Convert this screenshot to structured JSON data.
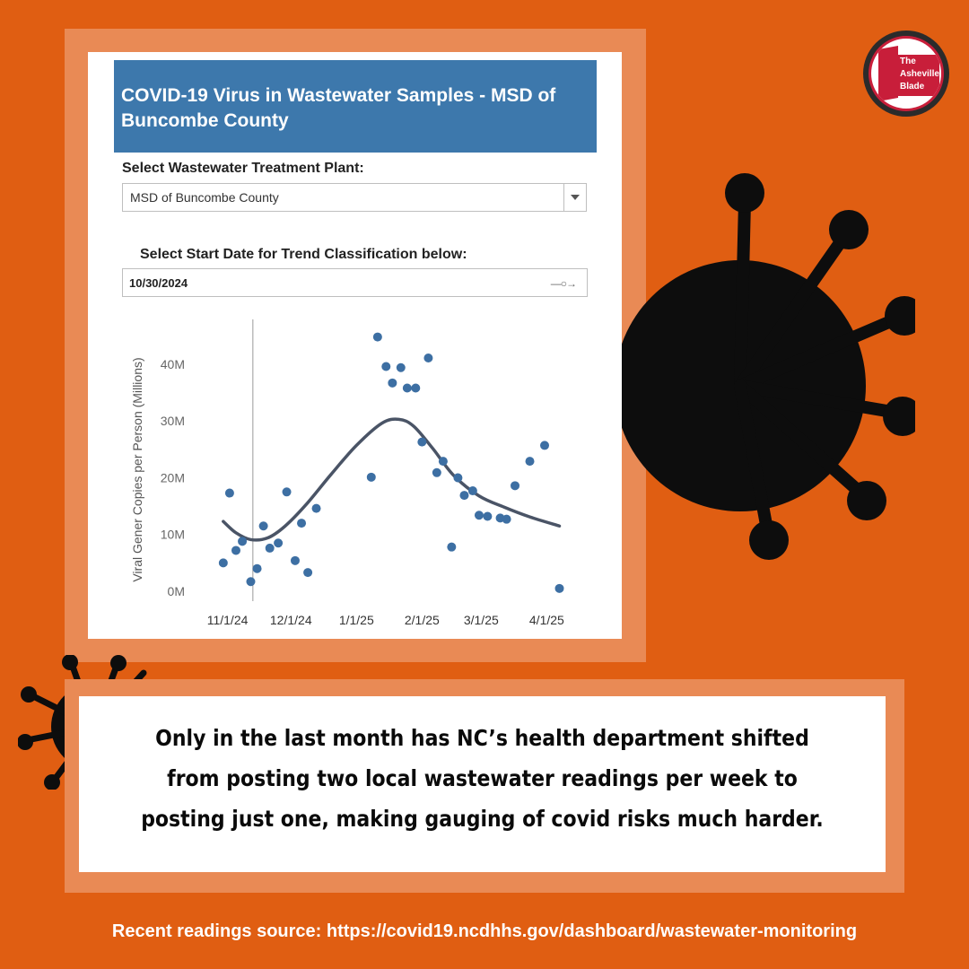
{
  "card": {
    "title": "COVID-19 Virus in Wastewater Samples - MSD of Buncombe County",
    "plant_label": "Select Wastewater Treatment Plant:",
    "plant_value": "MSD of Buncombe County",
    "date_label": "Select Start Date for Trend Classification below:",
    "date_value": "10/30/2024",
    "slider_icon": "—○→"
  },
  "logo": {
    "line1": "The",
    "line2": "Asheville",
    "line3": "Blade"
  },
  "caption": "Only in the last month has NC’s health department shifted from posting two local wastewater readings per week to posting just one, making gauging of covid risks much harder.",
  "source": "Recent readings source: https://covid19.ncdhhs.gov/dashboard/wastewater-monitoring",
  "colors": {
    "background": "#e05e12",
    "frame": "#e98a55",
    "header": "#3d78ac",
    "points": "#3d6fa3",
    "trend": "#4a5466",
    "virus": "#0d0d0d"
  },
  "icons": {
    "big": "virus-icon",
    "small": "virus-icon",
    "logo": "blade-logo-icon"
  },
  "chart_data": {
    "type": "scatter",
    "title": "",
    "xlabel": "",
    "ylabel": "Viral Gener Copies per Person (Millions)",
    "xlim": [
      "2024-10-22",
      "2025-04-14"
    ],
    "ylim": [
      0,
      46
    ],
    "ytick_values": [
      0,
      10,
      20,
      30,
      40
    ],
    "ytick_labels": [
      "0M",
      "10M",
      "20M",
      "30M",
      "40M"
    ],
    "xtick_values": [
      "2024-11-01",
      "2024-12-01",
      "2025-01-01",
      "2025-02-01",
      "2025-03-01",
      "2025-04-01"
    ],
    "xtick_labels": [
      "11/1/24",
      "12/1/24",
      "1/1/25",
      "2/1/25",
      "3/1/25",
      "4/1/25"
    ],
    "reference_line": {
      "x": "2024-11-13"
    },
    "grid": false,
    "legend": "none",
    "series": [
      {
        "type": "scatter",
        "points": [
          [
            "2024-10-30",
            5.0
          ],
          [
            "2024-11-02",
            17.3
          ],
          [
            "2024-11-05",
            7.2
          ],
          [
            "2024-11-08",
            8.8
          ],
          [
            "2024-11-12",
            1.7
          ],
          [
            "2024-11-15",
            4.0
          ],
          [
            "2024-11-18",
            11.5
          ],
          [
            "2024-11-21",
            7.6
          ],
          [
            "2024-11-25",
            8.5
          ],
          [
            "2024-11-29",
            17.5
          ],
          [
            "2024-12-03",
            5.4
          ],
          [
            "2024-12-06",
            12.0
          ],
          [
            "2024-12-09",
            3.3
          ],
          [
            "2024-12-13",
            14.6
          ],
          [
            "2025-01-08",
            20.1
          ],
          [
            "2025-01-11",
            44.8
          ],
          [
            "2025-01-15",
            39.6
          ],
          [
            "2025-01-18",
            36.7
          ],
          [
            "2025-01-22",
            39.4
          ],
          [
            "2025-01-25",
            35.8
          ],
          [
            "2025-01-29",
            35.8
          ],
          [
            "2025-02-01",
            26.3
          ],
          [
            "2025-02-04",
            41.1
          ],
          [
            "2025-02-08",
            20.9
          ],
          [
            "2025-02-11",
            22.9
          ],
          [
            "2025-02-15",
            7.8
          ],
          [
            "2025-02-18",
            20.0
          ],
          [
            "2025-02-21",
            16.9
          ],
          [
            "2025-02-25",
            17.7
          ],
          [
            "2025-02-28",
            13.4
          ],
          [
            "2025-03-04",
            13.2
          ],
          [
            "2025-03-10",
            12.9
          ],
          [
            "2025-03-13",
            12.7
          ],
          [
            "2025-03-17",
            18.6
          ],
          [
            "2025-03-24",
            22.9
          ],
          [
            "2025-03-31",
            25.7
          ],
          [
            "2025-04-07",
            0.5
          ]
        ]
      },
      {
        "type": "line",
        "points": [
          [
            "2024-10-30",
            12.3
          ],
          [
            "2024-11-05",
            10.3
          ],
          [
            "2024-11-12",
            9.1
          ],
          [
            "2024-11-20",
            9.4
          ],
          [
            "2024-11-28",
            11.4
          ],
          [
            "2024-12-08",
            15.2
          ],
          [
            "2024-12-20",
            20.6
          ],
          [
            "2025-01-01",
            25.7
          ],
          [
            "2025-01-13",
            29.6
          ],
          [
            "2025-01-21",
            30.3
          ],
          [
            "2025-01-28",
            29.1
          ],
          [
            "2025-02-06",
            25.2
          ],
          [
            "2025-02-16",
            20.4
          ],
          [
            "2025-02-28",
            16.8
          ],
          [
            "2025-03-12",
            14.8
          ],
          [
            "2025-03-24",
            13.1
          ],
          [
            "2025-04-07",
            11.5
          ]
        ]
      }
    ]
  }
}
